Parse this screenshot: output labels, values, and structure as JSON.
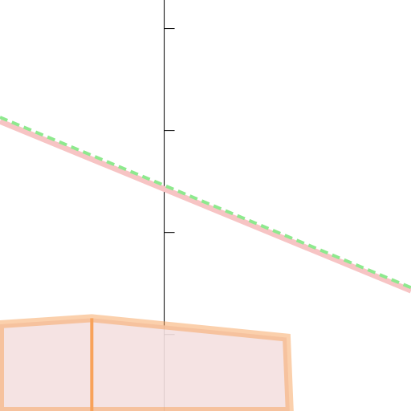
{
  "chart_data": {
    "type": "line",
    "xlim": [
      -1.61,
      2.42
    ],
    "ylim": [
      0.25,
      4.28
    ],
    "yticks": [
      1,
      2,
      3,
      4
    ],
    "series": [
      {
        "style": "area",
        "color": "#f8a25a",
        "x": [
          -1.61,
          -0.71,
          1.2,
          1.23
        ],
        "values": [
          1.1,
          1.16,
          0.97,
          0.25
        ]
      },
      {
        "style": "solid",
        "color": "#f8a25a",
        "x": [
          -0.71,
          -0.71
        ],
        "values": [
          1.16,
          0.25
        ]
      },
      {
        "style": "thick",
        "color": "#f7c4c4",
        "x": [
          -1.61,
          2.42
        ],
        "values": [
          3.09,
          1.43
        ]
      },
      {
        "style": "dashed",
        "color": "#8ee98e",
        "x": [
          -1.61,
          2.42
        ],
        "values": [
          3.13,
          1.46
        ]
      }
    ]
  }
}
